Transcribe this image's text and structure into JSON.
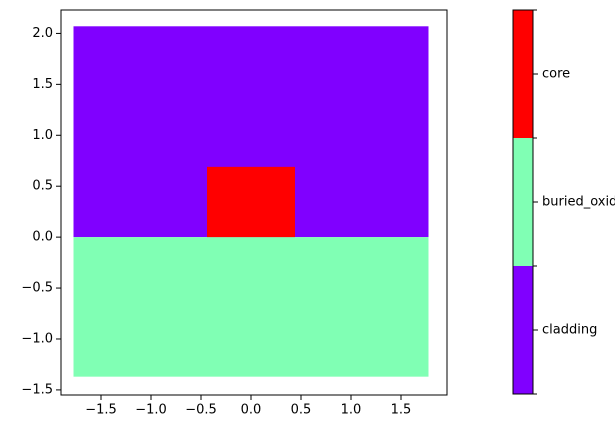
{
  "chart_data": {
    "type": "region_map",
    "regions": [
      {
        "name": "cladding",
        "color": "#8000ff",
        "x": [
          -1.775,
          1.775
        ],
        "y": [
          0,
          2.07
        ]
      },
      {
        "name": "buried_oxide",
        "color": "#80ffb4",
        "x": [
          -1.775,
          1.775
        ],
        "y": [
          -1.37,
          0
        ]
      },
      {
        "name": "core",
        "color": "#ff0000",
        "x": [
          -0.44,
          0.44
        ],
        "y": [
          0,
          0.69
        ]
      }
    ],
    "xlim": [
      -1.9,
      1.96
    ],
    "ylim": [
      -1.55,
      2.23
    ],
    "xticks": [
      {
        "value": -1.5,
        "label": "−1.5"
      },
      {
        "value": -1.0,
        "label": "−1.0"
      },
      {
        "value": -0.5,
        "label": "−0.5"
      },
      {
        "value": 0,
        "label": "0.0"
      },
      0.5,
      {
        "value": 1.0,
        "label": "1.0"
      },
      1.5
    ],
    "yticks": [
      {
        "value": -1.5,
        "label": "−1.5"
      },
      {
        "value": -1.0,
        "label": "−1.0"
      },
      {
        "value": -0.5,
        "label": "−0.5"
      },
      {
        "value": 0,
        "label": "0.0"
      },
      0.5,
      {
        "value": 1.0,
        "label": "1.0"
      },
      1.5,
      {
        "value": 2.0,
        "label": "2.0"
      }
    ]
  }
}
